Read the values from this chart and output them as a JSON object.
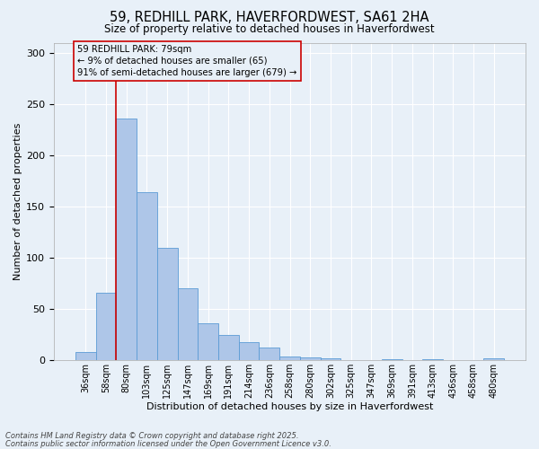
{
  "title_line1": "59, REDHILL PARK, HAVERFORDWEST, SA61 2HA",
  "title_line2": "Size of property relative to detached houses in Haverfordwest",
  "xlabel": "Distribution of detached houses by size in Haverfordwest",
  "ylabel": "Number of detached properties",
  "footer_line1": "Contains HM Land Registry data © Crown copyright and database right 2025.",
  "footer_line2": "Contains public sector information licensed under the Open Government Licence v3.0.",
  "annotation_line1": "59 REDHILL PARK: 79sqm",
  "annotation_line2": "← 9% of detached houses are smaller (65)",
  "annotation_line3": "91% of semi-detached houses are larger (679) →",
  "bar_labels": [
    "36sqm",
    "58sqm",
    "80sqm",
    "103sqm",
    "125sqm",
    "147sqm",
    "169sqm",
    "191sqm",
    "214sqm",
    "236sqm",
    "258sqm",
    "280sqm",
    "302sqm",
    "325sqm",
    "347sqm",
    "369sqm",
    "391sqm",
    "413sqm",
    "436sqm",
    "458sqm",
    "480sqm"
  ],
  "bar_values": [
    8,
    66,
    236,
    164,
    110,
    70,
    36,
    25,
    18,
    12,
    4,
    3,
    2,
    0,
    0,
    1,
    0,
    1,
    0,
    0,
    2
  ],
  "bar_color": "#aec6e8",
  "bar_edge_color": "#5b9bd5",
  "red_line_x": 1.5,
  "red_line_color": "#cc0000",
  "background_color": "#e8f0f8",
  "grid_color": "#ffffff",
  "ylim_max": 310,
  "yticks": [
    0,
    50,
    100,
    150,
    200,
    250,
    300
  ]
}
